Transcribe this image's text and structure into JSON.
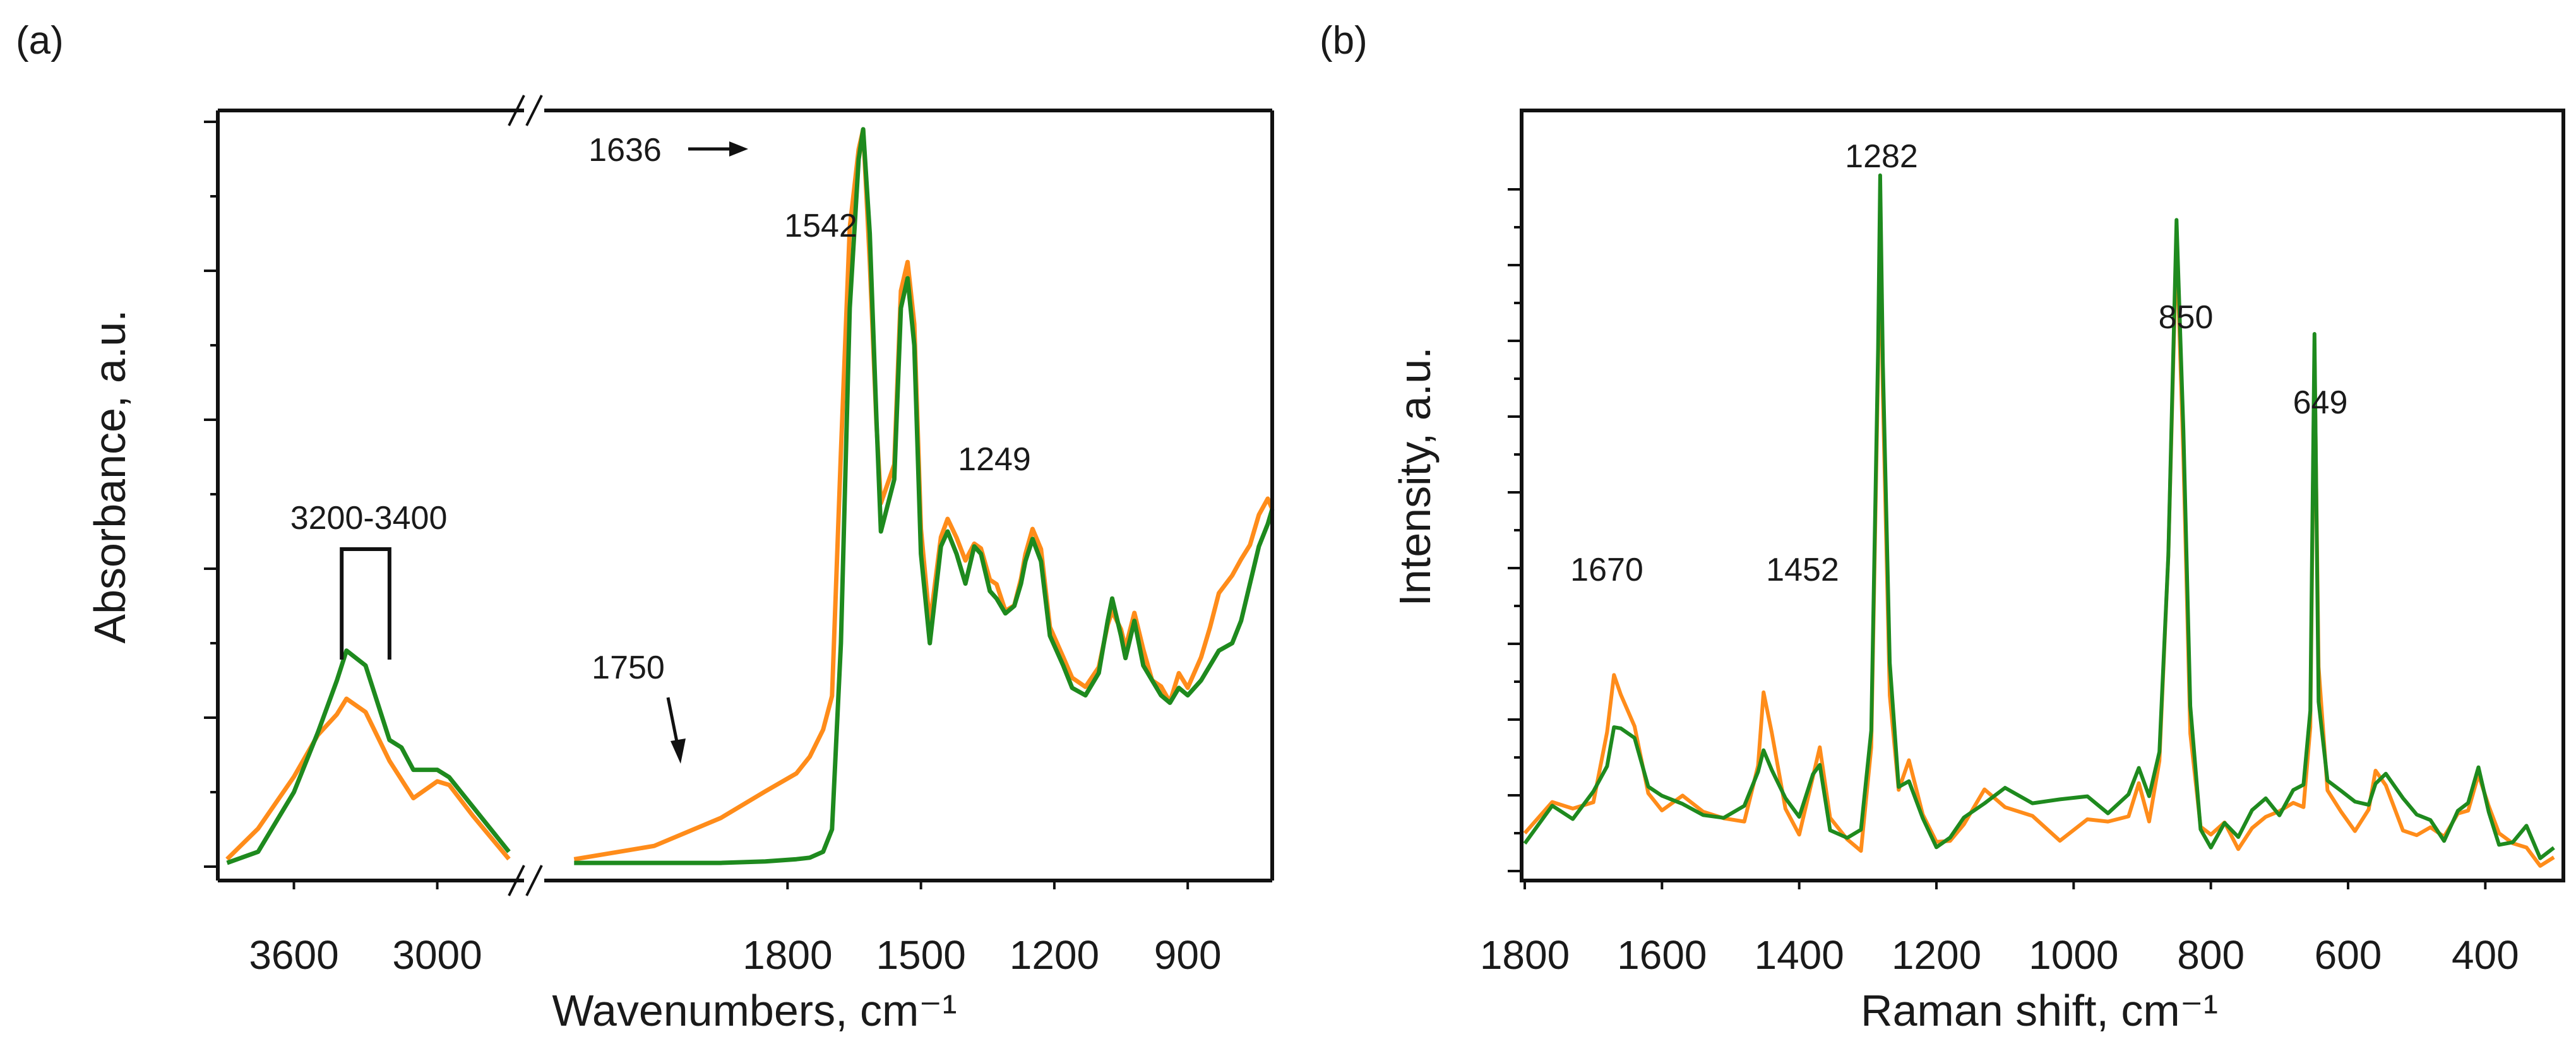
{
  "colors": {
    "orange": "#ff8c1a",
    "green": "#1e8a1e",
    "axis": "#111111",
    "background": "#ffffff"
  },
  "chart_data": [
    {
      "panel": "(a)",
      "type": "line",
      "title": "",
      "xlabel": "Wavenumbers, cm⁻¹",
      "ylabel": "Absorbance, a.u.",
      "broken_x_axis": true,
      "segments": [
        {
          "xlim": [
            3900,
            2650
          ],
          "ticks": [
            3600,
            3000
          ]
        },
        {
          "xlim": [
            2350,
            710
          ],
          "ticks": [
            1800,
            1500,
            1200,
            900
          ]
        }
      ],
      "ylim": [
        0,
        1.0
      ],
      "y_tick_labels_shown": false,
      "y_major_ticks": [
        0,
        0.2,
        0.4,
        0.6,
        0.8,
        1.0
      ],
      "grid": false,
      "legend": "none",
      "series": [
        {
          "name": "orange",
          "color": "#ff8c1a",
          "x": [
            3880,
            3750,
            3600,
            3500,
            3420,
            3380,
            3300,
            3200,
            3100,
            3000,
            2950,
            2850,
            2700,
            2280,
            2100,
            1950,
            1850,
            1780,
            1750,
            1720,
            1700,
            1680,
            1660,
            1640,
            1630,
            1615,
            1600,
            1590,
            1560,
            1545,
            1530,
            1515,
            1500,
            1480,
            1455,
            1440,
            1420,
            1400,
            1380,
            1365,
            1345,
            1330,
            1310,
            1290,
            1275,
            1265,
            1249,
            1230,
            1210,
            1180,
            1160,
            1130,
            1100,
            1080,
            1070,
            1050,
            1040,
            1020,
            1000,
            980,
            960,
            940,
            920,
            900,
            870,
            850,
            830,
            800,
            780,
            760,
            740,
            720,
            710
          ],
          "y": [
            0.01,
            0.04,
            0.12,
            0.17,
            0.2,
            0.22,
            0.2,
            0.14,
            0.1,
            0.12,
            0.11,
            0.07,
            0.02,
            0.01,
            0.03,
            0.06,
            0.09,
            0.12,
            0.14,
            0.18,
            0.22,
            0.55,
            0.85,
            0.97,
            1.0,
            0.82,
            0.6,
            0.5,
            0.55,
            0.78,
            0.8,
            0.72,
            0.45,
            0.32,
            0.44,
            0.46,
            0.43,
            0.4,
            0.44,
            0.43,
            0.39,
            0.38,
            0.35,
            0.36,
            0.39,
            0.41,
            0.45,
            0.42,
            0.32,
            0.28,
            0.25,
            0.24,
            0.27,
            0.33,
            0.35,
            0.32,
            0.3,
            0.35,
            0.3,
            0.26,
            0.24,
            0.22,
            0.25,
            0.24,
            0.28,
            0.32,
            0.36,
            0.4,
            0.42,
            0.44,
            0.48,
            0.5,
            0.49
          ]
        },
        {
          "name": "green",
          "color": "#1e8a1e",
          "x": [
            3880,
            3750,
            3600,
            3500,
            3420,
            3380,
            3300,
            3200,
            3150,
            3100,
            3000,
            2950,
            2850,
            2700,
            2280,
            2100,
            1950,
            1850,
            1780,
            1750,
            1720,
            1700,
            1680,
            1660,
            1640,
            1630,
            1615,
            1600,
            1590,
            1560,
            1545,
            1530,
            1515,
            1500,
            1480,
            1455,
            1440,
            1420,
            1400,
            1380,
            1365,
            1345,
            1330,
            1310,
            1290,
            1275,
            1265,
            1249,
            1230,
            1210,
            1180,
            1160,
            1130,
            1100,
            1080,
            1070,
            1050,
            1040,
            1020,
            1000,
            980,
            960,
            940,
            920,
            900,
            870,
            850,
            830,
            800,
            780,
            760,
            740,
            720,
            710
          ],
          "y": [
            0.005,
            0.02,
            0.1,
            0.18,
            0.25,
            0.29,
            0.27,
            0.17,
            0.16,
            0.13,
            0.13,
            0.12,
            0.08,
            0.02,
            0.005,
            0.005,
            0.005,
            0.007,
            0.01,
            0.012,
            0.02,
            0.05,
            0.3,
            0.75,
            0.95,
            0.99,
            0.85,
            0.6,
            0.45,
            0.52,
            0.75,
            0.79,
            0.7,
            0.42,
            0.3,
            0.43,
            0.45,
            0.42,
            0.38,
            0.43,
            0.42,
            0.37,
            0.36,
            0.34,
            0.35,
            0.38,
            0.41,
            0.44,
            0.41,
            0.31,
            0.27,
            0.24,
            0.23,
            0.26,
            0.33,
            0.36,
            0.31,
            0.28,
            0.33,
            0.27,
            0.25,
            0.23,
            0.22,
            0.24,
            0.23,
            0.25,
            0.27,
            0.29,
            0.3,
            0.33,
            0.38,
            0.43,
            0.46,
            0.48
          ]
        }
      ],
      "annotations": [
        {
          "text": "1636",
          "x": 1636,
          "y": 0.98,
          "arrow": true
        },
        {
          "text": "1542",
          "x": 1542,
          "y": 0.8
        },
        {
          "text": "1249",
          "x": 1249,
          "y": 0.46
        },
        {
          "text": "1750",
          "x": 1750,
          "y": 0.15,
          "arrow": true
        },
        {
          "text": "3200-3400",
          "x_range": [
            3400,
            3200
          ],
          "bracket": true
        }
      ]
    },
    {
      "panel": "(b)",
      "type": "line",
      "title": "",
      "xlabel": "Raman shift, cm⁻¹",
      "ylabel": "Intensity, a.u.",
      "xlim": [
        1800,
        300
      ],
      "x_ticks": [
        1800,
        1600,
        1400,
        1200,
        1000,
        800,
        600,
        400
      ],
      "ylim": [
        0,
        1.0
      ],
      "y_tick_labels_shown": false,
      "y_major_ticks": [
        0,
        0.1,
        0.2,
        0.3,
        0.4,
        0.5,
        0.6,
        0.7,
        0.8,
        0.9
      ],
      "grid": false,
      "legend": "none",
      "series": [
        {
          "name": "orange",
          "color": "#ff8c1a",
          "x": [
            1800,
            1760,
            1730,
            1700,
            1680,
            1670,
            1660,
            1640,
            1620,
            1600,
            1570,
            1540,
            1510,
            1480,
            1460,
            1452,
            1440,
            1420,
            1400,
            1380,
            1370,
            1355,
            1330,
            1310,
            1295,
            1285,
            1282,
            1278,
            1268,
            1255,
            1240,
            1220,
            1200,
            1180,
            1160,
            1130,
            1100,
            1060,
            1020,
            980,
            950,
            920,
            905,
            890,
            875,
            862,
            850,
            840,
            830,
            815,
            800,
            780,
            760,
            740,
            720,
            700,
            680,
            665,
            655,
            649,
            643,
            630,
            610,
            590,
            570,
            560,
            545,
            520,
            500,
            480,
            460,
            440,
            425,
            410,
            395,
            380,
            360,
            340,
            320,
            300
          ],
          "y": [
            0.05,
            0.08,
            0.07,
            0.1,
            0.2,
            0.25,
            0.22,
            0.18,
            0.12,
            0.1,
            0.08,
            0.07,
            0.05,
            0.07,
            0.15,
            0.22,
            0.18,
            0.08,
            0.06,
            0.14,
            0.16,
            0.07,
            0.03,
            0.04,
            0.18,
            0.65,
            0.88,
            0.62,
            0.25,
            0.12,
            0.13,
            0.06,
            0.02,
            0.05,
            0.08,
            0.09,
            0.07,
            0.06,
            0.05,
            0.07,
            0.06,
            0.07,
            0.11,
            0.08,
            0.15,
            0.4,
            0.82,
            0.55,
            0.2,
            0.06,
            0.03,
            0.05,
            0.03,
            0.07,
            0.09,
            0.07,
            0.08,
            0.09,
            0.2,
            0.7,
            0.25,
            0.09,
            0.08,
            0.07,
            0.09,
            0.12,
            0.11,
            0.07,
            0.05,
            0.06,
            0.04,
            0.06,
            0.08,
            0.14,
            0.1,
            0.04,
            0.02,
            0.04,
            0.02,
            0.03
          ]
        },
        {
          "name": "green",
          "color": "#1e8a1e",
          "x": [
            1800,
            1760,
            1730,
            1700,
            1680,
            1670,
            1660,
            1640,
            1620,
            1600,
            1570,
            1540,
            1510,
            1480,
            1460,
            1452,
            1440,
            1420,
            1400,
            1380,
            1370,
            1355,
            1330,
            1310,
            1295,
            1285,
            1282,
            1278,
            1268,
            1255,
            1240,
            1220,
            1200,
            1180,
            1160,
            1130,
            1100,
            1060,
            1020,
            980,
            950,
            920,
            905,
            890,
            875,
            862,
            850,
            840,
            830,
            815,
            800,
            780,
            760,
            740,
            720,
            700,
            680,
            665,
            655,
            649,
            643,
            630,
            610,
            590,
            570,
            560,
            545,
            520,
            500,
            480,
            460,
            440,
            425,
            410,
            395,
            380,
            360,
            340,
            320,
            300
          ],
          "y": [
            0.04,
            0.09,
            0.06,
            0.09,
            0.15,
            0.2,
            0.2,
            0.17,
            0.1,
            0.11,
            0.09,
            0.08,
            0.06,
            0.08,
            0.14,
            0.17,
            0.15,
            0.08,
            0.07,
            0.14,
            0.15,
            0.07,
            0.03,
            0.04,
            0.2,
            0.7,
            0.92,
            0.66,
            0.26,
            0.13,
            0.12,
            0.06,
            0.02,
            0.04,
            0.09,
            0.1,
            0.09,
            0.07,
            0.08,
            0.1,
            0.08,
            0.09,
            0.12,
            0.09,
            0.16,
            0.42,
            0.85,
            0.58,
            0.2,
            0.07,
            0.04,
            0.06,
            0.03,
            0.08,
            0.1,
            0.09,
            0.1,
            0.1,
            0.21,
            0.72,
            0.24,
            0.1,
            0.09,
            0.08,
            0.1,
            0.13,
            0.12,
            0.08,
            0.07,
            0.07,
            0.05,
            0.07,
            0.08,
            0.12,
            0.09,
            0.05,
            0.03,
            0.05,
            0.03,
            0.04
          ]
        }
      ],
      "annotations": [
        {
          "text": "1670",
          "x": 1670,
          "y": 0.27
        },
        {
          "text": "1452",
          "x": 1452,
          "y": 0.24
        },
        {
          "text": "1282",
          "x": 1282,
          "y": 0.93
        },
        {
          "text": "850",
          "x": 850,
          "y": 0.87
        },
        {
          "text": "649",
          "x": 649,
          "y": 0.74
        }
      ]
    }
  ]
}
